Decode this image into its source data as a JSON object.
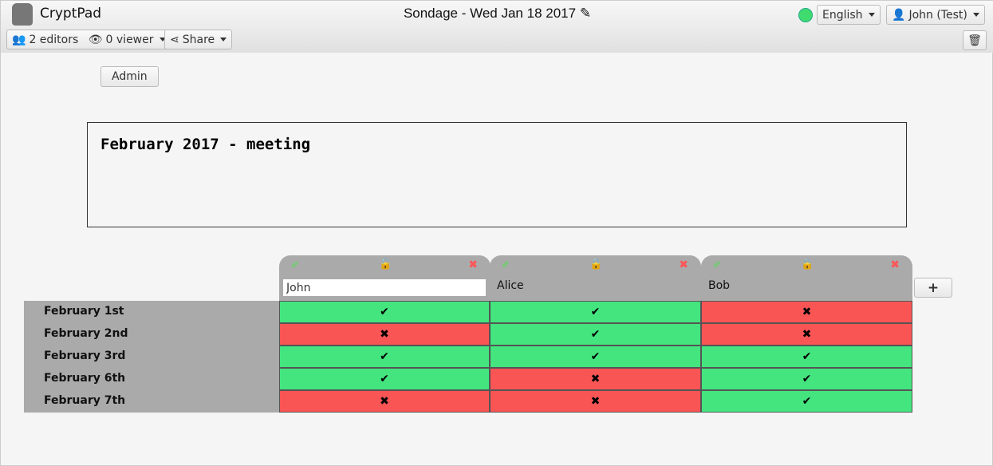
{
  "app": {
    "name": "CryptPad",
    "title": "Sondage - Wed Jan 18 2017"
  },
  "toolbar": {
    "editors": "2 editors",
    "viewers": "0 viewer",
    "share": "Share",
    "language": "English",
    "user": "John (Test)",
    "status_color": "#3fdb6f"
  },
  "admin_label": "Admin",
  "poll_title": "February 2017 - meeting",
  "columns": [
    {
      "name": "John",
      "editable": true,
      "locked": false
    },
    {
      "name": "Alice",
      "locked": true
    },
    {
      "name": "Bob",
      "locked": true
    }
  ],
  "rows": [
    {
      "label": "February 1st",
      "values": [
        "yes",
        "yes",
        "no"
      ]
    },
    {
      "label": "February 2nd",
      "values": [
        "no",
        "yes",
        "no"
      ]
    },
    {
      "label": "February 3rd",
      "values": [
        "yes",
        "yes",
        "yes"
      ]
    },
    {
      "label": "February 6th",
      "values": [
        "yes",
        "no",
        "yes"
      ]
    },
    {
      "label": "February 7th",
      "values": [
        "no",
        "no",
        "yes"
      ]
    }
  ],
  "add_label": "+",
  "colors": {
    "yes": "#44e47f",
    "no": "#fa5555"
  }
}
